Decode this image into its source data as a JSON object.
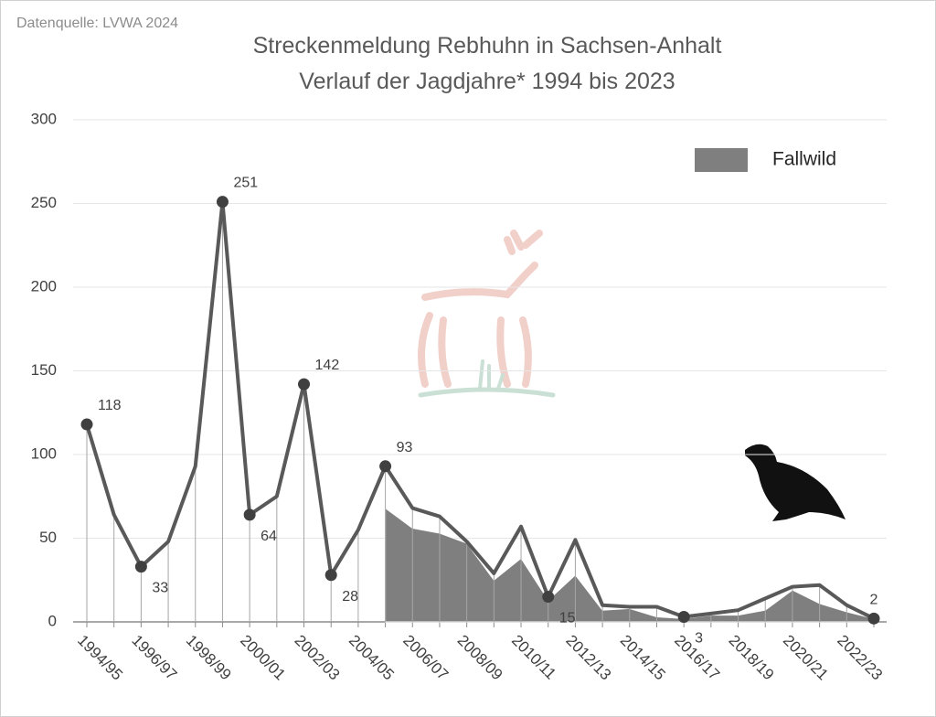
{
  "source": "Datenquelle: LVWA 2024",
  "chart_data": {
    "type": "line",
    "title": [
      "Streckenmeldung Rebhuhn in Sachsen-Anhalt",
      "Verlauf der Jagdjahre* 1994 bis 2023"
    ],
    "categories": [
      "1994/95",
      null,
      "1996/97",
      null,
      "1998/99",
      null,
      "2000/01",
      null,
      "2002/03",
      null,
      "2004/05",
      null,
      "2006/07",
      null,
      "2008/09",
      null,
      "2010/11",
      null,
      "2012/13",
      null,
      "2014/15",
      null,
      "2016/17",
      null,
      "2018/19",
      null,
      "2020/21",
      null,
      "2022/23",
      null
    ],
    "series": [
      {
        "color": "#595959",
        "values": [
          118,
          64,
          33,
          48,
          93,
          251,
          64,
          75,
          142,
          28,
          55,
          93,
          68,
          63,
          48,
          29,
          57,
          15,
          49,
          10,
          9,
          9,
          3,
          5,
          7,
          14,
          21,
          22,
          10,
          2
        ]
      },
      {
        "name": "Fallwild",
        "type": "area",
        "color": "#7f7f7f",
        "values": [
          null,
          null,
          null,
          null,
          null,
          null,
          null,
          null,
          null,
          null,
          null,
          68,
          56,
          53,
          47,
          25,
          38,
          13,
          28,
          7,
          8,
          3,
          2,
          4,
          4,
          7,
          19,
          11,
          6,
          2
        ]
      }
    ],
    "labeled_points": [
      0,
      2,
      5,
      6,
      8,
      9,
      11,
      17,
      22,
      29
    ],
    "ylim": [
      0,
      300
    ],
    "yticks": [
      0,
      50,
      100,
      150,
      200,
      250,
      300
    ],
    "grid": true,
    "legend": "upper right"
  }
}
